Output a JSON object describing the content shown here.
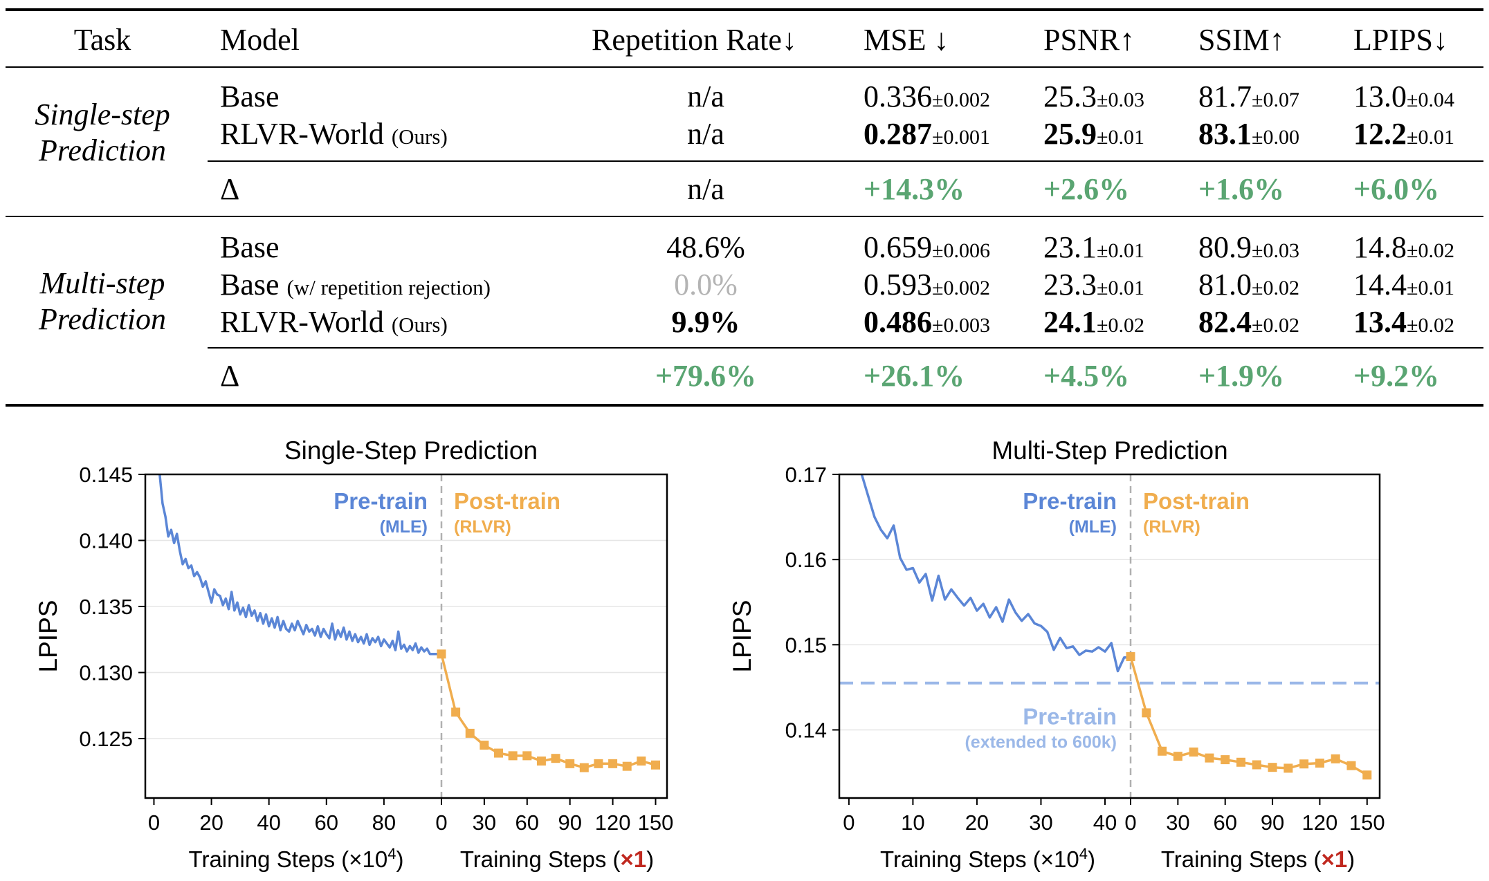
{
  "table": {
    "headers": [
      "Task",
      "Model",
      "Repetition Rate↓",
      "MSE ↓",
      "PSNR↑",
      "SSIM↑",
      "LPIPS↓"
    ],
    "groups": [
      {
        "task_line1": "Single-step",
        "task_line2": "Prediction",
        "rows": [
          {
            "model": "Base",
            "suffix": "",
            "rep": "n/a",
            "rep_style": "normal",
            "cells": [
              {
                "v": "0.336",
                "pm": "±0.002",
                "bold": false
              },
              {
                "v": "25.3",
                "pm": "±0.03",
                "bold": false
              },
              {
                "v": "81.7",
                "pm": "±0.07",
                "bold": false
              },
              {
                "v": "13.0",
                "pm": "±0.04",
                "bold": false
              }
            ]
          },
          {
            "model": "RLVR-World",
            "suffix": "(Ours)",
            "rep": "n/a",
            "rep_style": "normal",
            "cells": [
              {
                "v": "0.287",
                "pm": "±0.001",
                "bold": true
              },
              {
                "v": "25.9",
                "pm": "±0.01",
                "bold": true
              },
              {
                "v": "83.1",
                "pm": "±0.00",
                "bold": true
              },
              {
                "v": "12.2",
                "pm": "±0.01",
                "bold": true
              }
            ]
          }
        ],
        "delta": {
          "label": "Δ",
          "rep": "n/a",
          "rep_green": false,
          "values": [
            "+14.3%",
            "+2.6%",
            "+1.6%",
            "+6.0%"
          ]
        }
      },
      {
        "task_line1": "Multi-step",
        "task_line2": "Prediction",
        "rows": [
          {
            "model": "Base",
            "suffix": "",
            "rep": "48.6%",
            "rep_style": "normal",
            "cells": [
              {
                "v": "0.659",
                "pm": "±0.006",
                "bold": false
              },
              {
                "v": "23.1",
                "pm": "±0.01",
                "bold": false
              },
              {
                "v": "80.9",
                "pm": "±0.03",
                "bold": false
              },
              {
                "v": "14.8",
                "pm": "±0.02",
                "bold": false
              }
            ]
          },
          {
            "model": "Base",
            "suffix": "(w/ repetition rejection)",
            "rep": "0.0%",
            "rep_style": "gray",
            "cells": [
              {
                "v": "0.593",
                "pm": "±0.002",
                "bold": false
              },
              {
                "v": "23.3",
                "pm": "±0.01",
                "bold": false
              },
              {
                "v": "81.0",
                "pm": "±0.02",
                "bold": false
              },
              {
                "v": "14.4",
                "pm": "±0.01",
                "bold": false
              }
            ]
          },
          {
            "model": "RLVR-World",
            "suffix": "(Ours)",
            "rep": "9.9%",
            "rep_style": "bold",
            "cells": [
              {
                "v": "0.486",
                "pm": "±0.003",
                "bold": true
              },
              {
                "v": "24.1",
                "pm": "±0.02",
                "bold": true
              },
              {
                "v": "82.4",
                "pm": "±0.02",
                "bold": true
              },
              {
                "v": "13.4",
                "pm": "±0.02",
                "bold": true
              }
            ]
          }
        ],
        "delta": {
          "label": "Δ",
          "rep": "+79.6%",
          "rep_green": true,
          "values": [
            "+26.1%",
            "+4.5%",
            "+1.9%",
            "+9.2%"
          ]
        }
      }
    ]
  },
  "colors": {
    "pretrain": "#5b86d6",
    "posttrain": "#f0ad4e",
    "extended": "#9bb8e8",
    "green": "#5aa572",
    "red": "#c0281f"
  },
  "chart_data": [
    {
      "type": "line",
      "title": "Single-Step Prediction",
      "ylabel": "LPIPS",
      "ylim": [
        0.1205,
        0.145
      ],
      "yticks": [
        "0.125",
        "0.130",
        "0.135",
        "0.140",
        "0.145"
      ],
      "pre_label": "Pre-train",
      "pre_sub": "(MLE)",
      "post_label": "Post-train",
      "post_sub": "(RLVR)",
      "pre": {
        "xlabel_main": "Training Steps (×10",
        "xlabel_sup": "4",
        "xlabel_end": ")",
        "xlim": [
          -3,
          100
        ],
        "xticks": [
          "0",
          "20",
          "40",
          "60",
          "80"
        ],
        "x": [
          2,
          3,
          4,
          5,
          6,
          7,
          8,
          9,
          10,
          11,
          12,
          13,
          14,
          15,
          16,
          17,
          18,
          19,
          20,
          21,
          22,
          23,
          24,
          25,
          26,
          27,
          28,
          29,
          30,
          31,
          32,
          33,
          34,
          35,
          36,
          37,
          38,
          39,
          40,
          41,
          42,
          43,
          44,
          45,
          46,
          47,
          48,
          49,
          50,
          51,
          52,
          53,
          54,
          55,
          56,
          57,
          58,
          59,
          60,
          61,
          62,
          63,
          64,
          65,
          66,
          67,
          68,
          69,
          70,
          71,
          72,
          73,
          74,
          75,
          76,
          77,
          78,
          79,
          80,
          81,
          82,
          83,
          84,
          85,
          86,
          87,
          88,
          89,
          90,
          91,
          92,
          93,
          94,
          95,
          96
        ],
        "y": [
          0.145,
          0.1428,
          0.1418,
          0.1403,
          0.1408,
          0.1398,
          0.1405,
          0.1392,
          0.1382,
          0.1386,
          0.1379,
          0.1381,
          0.1373,
          0.1376,
          0.1372,
          0.1365,
          0.1369,
          0.1361,
          0.1353,
          0.1363,
          0.1359,
          0.1358,
          0.1351,
          0.1356,
          0.1348,
          0.1361,
          0.1347,
          0.1353,
          0.1344,
          0.1349,
          0.1342,
          0.1351,
          0.1343,
          0.1347,
          0.1339,
          0.1345,
          0.1337,
          0.1344,
          0.1335,
          0.1341,
          0.1334,
          0.1342,
          0.1332,
          0.1339,
          0.1333,
          0.1331,
          0.1337,
          0.1332,
          0.1339,
          0.1334,
          0.1329,
          0.1336,
          0.1331,
          0.1333,
          0.1328,
          0.1335,
          0.1327,
          0.1333,
          0.1329,
          0.1326,
          0.1337,
          0.1325,
          0.1332,
          0.1327,
          0.1334,
          0.1325,
          0.1331,
          0.1324,
          0.1329,
          0.1323,
          0.1327,
          0.1322,
          0.1329,
          0.1321,
          0.1326,
          0.1323,
          0.1327,
          0.132,
          0.1325,
          0.1322,
          0.1319,
          0.1324,
          0.1317,
          0.1331,
          0.1318,
          0.1321,
          0.1316,
          0.132,
          0.1317,
          0.1322,
          0.1315,
          0.1319,
          0.1316,
          0.1318,
          0.1314
        ]
      },
      "post": {
        "xlabel_main": "Training Steps (",
        "xlabel_red": "×1",
        "xlabel_end": ")",
        "xlim": [
          0,
          158
        ],
        "xticks": [
          "0",
          "30",
          "60",
          "90",
          "120",
          "150"
        ],
        "x": [
          0,
          10,
          20,
          30,
          40,
          50,
          60,
          70,
          80,
          90,
          100,
          110,
          120,
          130,
          140,
          150
        ],
        "y": [
          0.1314,
          0.127,
          0.1254,
          0.1245,
          0.1239,
          0.1237,
          0.1237,
          0.1233,
          0.1235,
          0.1231,
          0.1228,
          0.1231,
          0.1231,
          0.1229,
          0.1233,
          0.123
        ]
      }
    },
    {
      "type": "line",
      "title": "Multi-Step Prediction",
      "ylabel": "LPIPS",
      "ylim": [
        0.132,
        0.17
      ],
      "yticks": [
        "0.14",
        "0.15",
        "0.16",
        "0.17"
      ],
      "pre_label": "Pre-train",
      "pre_sub": "(MLE)",
      "post_label": "Post-train",
      "post_sub": "(RLVR)",
      "hline": {
        "y": 0.1455,
        "label": "Pre-train",
        "sub": "(extended to 600k)"
      },
      "pre": {
        "xlabel_main": "Training Steps (×10",
        "xlabel_sup": "4",
        "xlabel_end": ")",
        "xlim": [
          -1.5,
          44
        ],
        "xticks": [
          "0",
          "10",
          "20",
          "30",
          "40"
        ],
        "x": [
          2,
          3,
          4,
          5,
          6,
          7,
          8,
          9,
          10,
          11,
          12,
          13,
          14,
          15,
          16,
          17,
          18,
          19,
          20,
          21,
          22,
          23,
          24,
          25,
          26,
          27,
          28,
          29,
          30,
          31,
          32,
          33,
          34,
          35,
          36,
          37,
          38,
          39,
          40,
          41,
          42,
          43,
          44
        ],
        "y": [
          0.17,
          0.1675,
          0.165,
          0.1635,
          0.1625,
          0.164,
          0.1602,
          0.1588,
          0.159,
          0.1573,
          0.1583,
          0.1552,
          0.1581,
          0.1553,
          0.1565,
          0.1555,
          0.1546,
          0.1555,
          0.154,
          0.1548,
          0.1532,
          0.1544,
          0.1527,
          0.1553,
          0.1538,
          0.1528,
          0.1536,
          0.1525,
          0.1522,
          0.1515,
          0.1494,
          0.1508,
          0.1496,
          0.1498,
          0.1488,
          0.1493,
          0.1492,
          0.1497,
          0.1492,
          0.1502,
          0.1469,
          0.1485,
          0.1485
        ]
      },
      "post": {
        "xlabel_main": "Training Steps (",
        "xlabel_red": "×1",
        "xlabel_end": ")",
        "xlim": [
          0,
          158
        ],
        "xticks": [
          "0",
          "30",
          "60",
          "90",
          "120",
          "150"
        ],
        "x": [
          0,
          10,
          20,
          30,
          40,
          50,
          60,
          70,
          80,
          90,
          100,
          110,
          120,
          130,
          140,
          150
        ],
        "y": [
          0.1486,
          0.142,
          0.1375,
          0.1369,
          0.1374,
          0.1367,
          0.1365,
          0.1362,
          0.1359,
          0.1356,
          0.1355,
          0.136,
          0.1361,
          0.1366,
          0.1358,
          0.1347
        ]
      }
    }
  ]
}
